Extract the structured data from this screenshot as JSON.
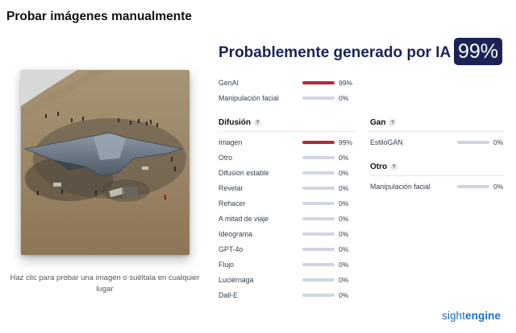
{
  "page": {
    "title": "Probar imágenes manualmente"
  },
  "upload": {
    "hint": "Haz clic para probar una imagen o suéltala en cualquier lugar"
  },
  "result": {
    "headline": "Probablemente generado por IA",
    "score": "99%"
  },
  "top_rows": [
    {
      "label": "GenAI",
      "value": "99%",
      "fraction": 0.99
    },
    {
      "label": "Manipulación facial",
      "value": "0%",
      "fraction": 0
    }
  ],
  "diffusion": {
    "title": "Difusión",
    "help_icon": "question-icon",
    "rows": [
      {
        "label": "Imagen",
        "value": "99%",
        "fraction": 0.99
      },
      {
        "label": "Otro",
        "value": "0%",
        "fraction": 0
      },
      {
        "label": "Difusión estable",
        "value": "0%",
        "fraction": 0
      },
      {
        "label": "Revelar",
        "value": "0%",
        "fraction": 0
      },
      {
        "label": "Rehacer",
        "value": "0%",
        "fraction": 0
      },
      {
        "label": "A mitad de viaje",
        "value": "0%",
        "fraction": 0
      },
      {
        "label": "Ideograma",
        "value": "0%",
        "fraction": 0
      },
      {
        "label": "GPT-4o",
        "value": "0%",
        "fraction": 0
      },
      {
        "label": "Flujo",
        "value": "0%",
        "fraction": 0
      },
      {
        "label": "Luciérnaga",
        "value": "0%",
        "fraction": 0
      },
      {
        "label": "Dall-E",
        "value": "0%",
        "fraction": 0
      }
    ]
  },
  "gan": {
    "title": "Gan",
    "help_icon": "question-icon",
    "rows": [
      {
        "label": "EstiloGAN",
        "value": "0%",
        "fraction": 0
      }
    ]
  },
  "other": {
    "title": "Otro",
    "help_icon": "question-icon",
    "rows": [
      {
        "label": "Manipulación facial",
        "value": "0%",
        "fraction": 0
      }
    ]
  },
  "brand": {
    "part1": "sight",
    "part2": "engine"
  },
  "colors": {
    "navy": "#1a2355",
    "bar_fill": "#b3283a",
    "bar_track": "#d1d5e0",
    "brand_blue": "#1a6fc2"
  }
}
